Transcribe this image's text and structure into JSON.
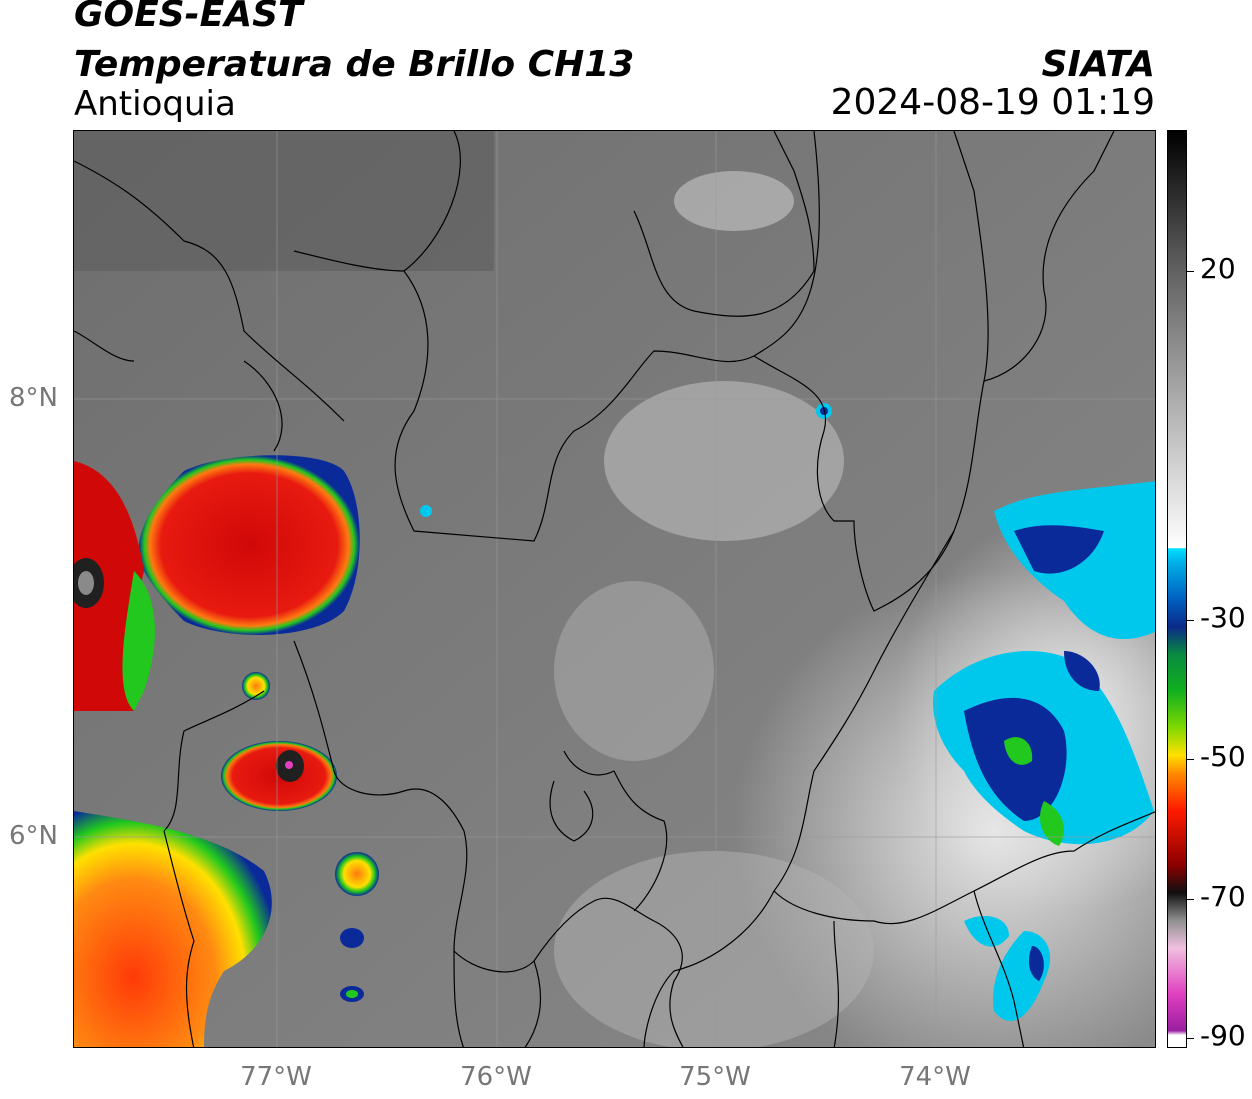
{
  "header": {
    "satellite": "GOES-EAST",
    "product": "Temperatura de Brillo CH13",
    "region": "Antioquia",
    "organization": "SIATA",
    "timestamp": "2024-08-19 01:19"
  },
  "map": {
    "lat_ticks": [
      "8°N",
      "6°N"
    ],
    "lon_ticks": [
      "77°W",
      "76°W",
      "75°W",
      "74°W"
    ],
    "colors": {
      "land_gray": "#7a7a7a",
      "warm_cloud": "#d8d8d8",
      "cold_red": "#e01010",
      "cold_orange": "#ff7a10",
      "cold_green": "#22c81e",
      "cold_blue": "#0a2a9a",
      "cyan": "#00c8ec",
      "borders": "#000000"
    }
  },
  "colorbar": {
    "labels": [
      "20",
      "-30",
      "-50",
      "-70",
      "-90"
    ],
    "stops": [
      "#ffffff",
      "#9a1fa0",
      "#e040c0",
      "#f0c0e0",
      "#101010",
      "#8a0000",
      "#ff1a00",
      "#ff8a00",
      "#ffe000",
      "#80d800",
      "#10b020",
      "#0a8a40",
      "#0a2a8a",
      "#0060c0",
      "#00b0e8",
      "#00e0ff",
      "#ffffff",
      "#a0a0a0",
      "#505050",
      "#000000"
    ]
  }
}
